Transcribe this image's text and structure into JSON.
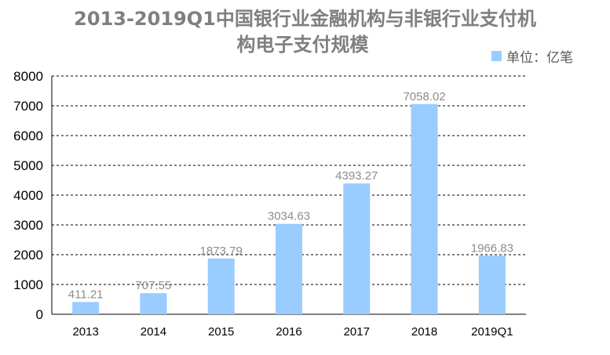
{
  "chart_data": {
    "type": "bar",
    "title_lines": [
      "2013-2019Q1中国银行业金融机构与非银行业支付机",
      "构电子支付规模"
    ],
    "title": "2013-2019Q1中国银行业金融机构与非银行业支付机构电子支付规模",
    "legend": {
      "label": "单位：亿笔",
      "position": "top-right"
    },
    "categories": [
      "2013",
      "2014",
      "2015",
      "2016",
      "2017",
      "2018",
      "2019Q1"
    ],
    "values": [
      411.21,
      707.55,
      1873.79,
      3034.63,
      4393.27,
      7058.02,
      1966.83
    ],
    "value_labels": [
      "411.21",
      "707.55",
      "1873.79",
      "3034.63",
      "4393.27",
      "7058.02",
      "1966.83"
    ],
    "ylim": [
      0,
      8000
    ],
    "yticks": [
      0,
      1000,
      2000,
      3000,
      4000,
      5000,
      6000,
      7000,
      8000
    ],
    "grid": true,
    "bar_color": "#99ccff"
  }
}
